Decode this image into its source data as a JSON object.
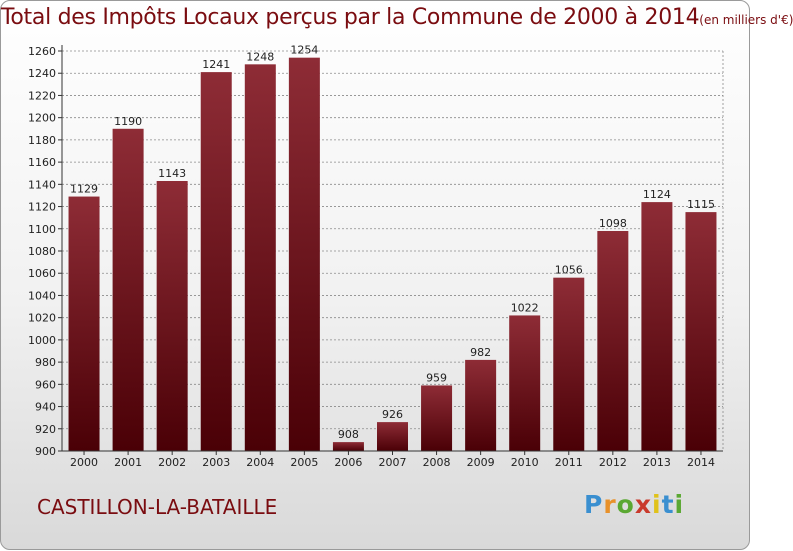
{
  "header": {
    "title": "Total des Impôts Locaux perçus par la Commune de 2000 à 2014",
    "subtitle": "(en milliers d'€)"
  },
  "footer": {
    "commune": "CASTILLON-LA-BATAILLE",
    "logo": {
      "letters": [
        "P",
        "r",
        "o",
        "x",
        "i",
        "t",
        "i"
      ],
      "colors": [
        "#3a8fd0",
        "#e8912a",
        "#5aa832",
        "#c93a2c",
        "#e0c21a",
        "#3a8fd0",
        "#5aa832"
      ]
    }
  },
  "colors": {
    "title": "#7a0c10",
    "bar_top": "#8e2c36",
    "bar_bottom": "#4a0006",
    "grid": "#8a8a8a"
  },
  "chart_data": {
    "type": "bar",
    "title": "Total des Impôts Locaux perçus par la Commune de 2000 à 2014 (en milliers d'€)",
    "xlabel": "",
    "ylabel": "",
    "categories": [
      "2000",
      "2001",
      "2002",
      "2003",
      "2004",
      "2005",
      "2006",
      "2007",
      "2008",
      "2009",
      "2010",
      "2011",
      "2012",
      "2013",
      "2014"
    ],
    "values": [
      1129,
      1190,
      1143,
      1241,
      1248,
      1254,
      908,
      926,
      959,
      982,
      1022,
      1056,
      1098,
      1124,
      1115
    ],
    "ylim": [
      900,
      1260
    ],
    "yticks": [
      900,
      920,
      940,
      960,
      980,
      1000,
      1020,
      1040,
      1060,
      1080,
      1100,
      1120,
      1140,
      1160,
      1180,
      1200,
      1220,
      1240,
      1260
    ],
    "grid": true
  }
}
